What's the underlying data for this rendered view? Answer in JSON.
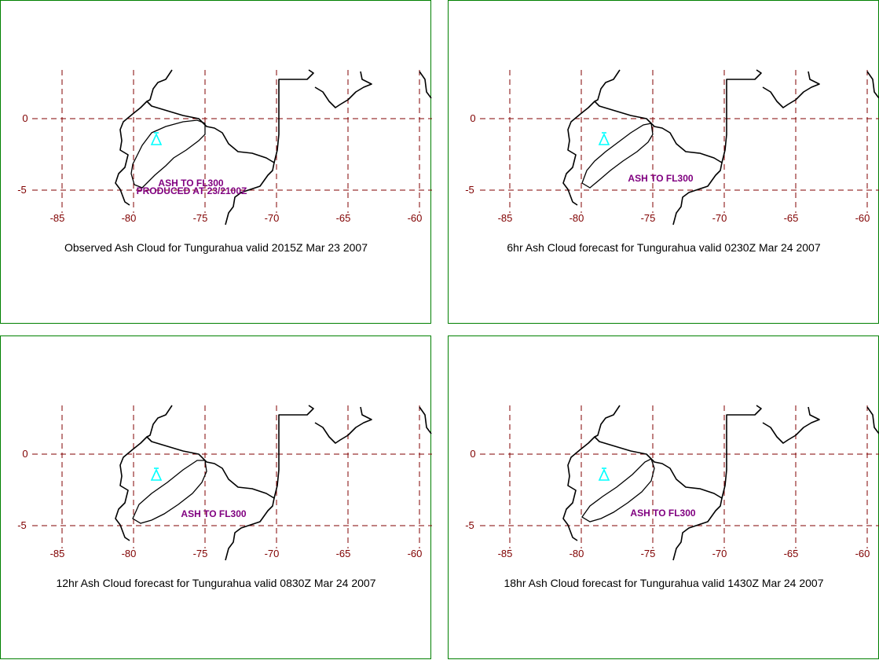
{
  "colors": {
    "frame": "#008000",
    "grid": "#800000",
    "tick": "#800000",
    "label": "#800080",
    "volcano": "#00ffff",
    "coast": "#000000"
  },
  "lon_ticks": [
    "-85",
    "-80",
    "-75",
    "-70",
    "-65",
    "-60"
  ],
  "lat_ticks": [
    "0",
    "-5"
  ],
  "volcano_icon": "volcano-triangle-icon",
  "panels": [
    {
      "caption": "Observed Ash Cloud for Tungurahua valid 2015Z Mar 23 2007",
      "ash_label": "ASH TO FL300",
      "produced_label": "PRODUCED AT 23/2100Z"
    },
    {
      "caption": "6hr Ash Cloud forecast for Tungurahua valid 0230Z Mar 24 2007",
      "ash_label": "ASH TO FL300",
      "produced_label": ""
    },
    {
      "caption": "12hr Ash Cloud forecast for Tungurahua valid 0830Z Mar 24 2007",
      "ash_label": "ASH TO FL300",
      "produced_label": ""
    },
    {
      "caption": "18hr Ash Cloud forecast for Tungurahua valid 1430Z Mar 24 2007",
      "ash_label": "ASH TO FL300",
      "produced_label": ""
    }
  ]
}
